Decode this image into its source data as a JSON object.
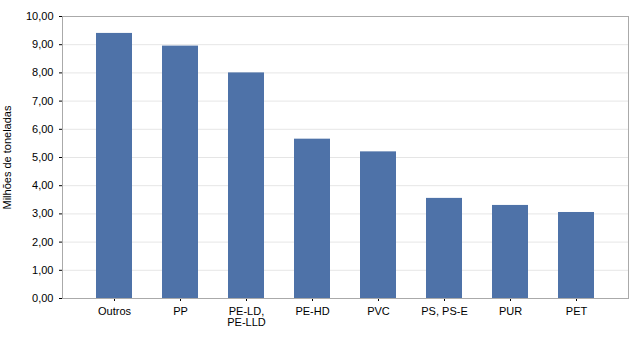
{
  "chart_data": {
    "type": "bar",
    "categories": [
      "Outros",
      "PP",
      "PE-LD,\nPE-LLD",
      "PE-HD",
      "PVC",
      "PS, PS-E",
      "PUR",
      "PET"
    ],
    "values": [
      9.4,
      8.95,
      8.0,
      5.65,
      5.2,
      3.55,
      3.3,
      3.05
    ],
    "color": "#4e72a8",
    "ylabel": "Milhões de toneladas",
    "ylim": [
      0,
      10.0
    ],
    "yticks": [
      {
        "value": 0.0,
        "label": "0,00"
      },
      {
        "value": 1.0,
        "label": "1,00"
      },
      {
        "value": 2.0,
        "label": "2,00"
      },
      {
        "value": 3.0,
        "label": "3,00"
      },
      {
        "value": 4.0,
        "label": "4,00"
      },
      {
        "value": 5.0,
        "label": "5,00"
      },
      {
        "value": 6.0,
        "label": "6,00"
      },
      {
        "value": 7.0,
        "label": "7,00"
      },
      {
        "value": 8.0,
        "label": "8,00"
      },
      {
        "value": 9.0,
        "label": "9,00"
      },
      {
        "value": 10.0,
        "label": "10,00"
      }
    ],
    "grid": true
  }
}
